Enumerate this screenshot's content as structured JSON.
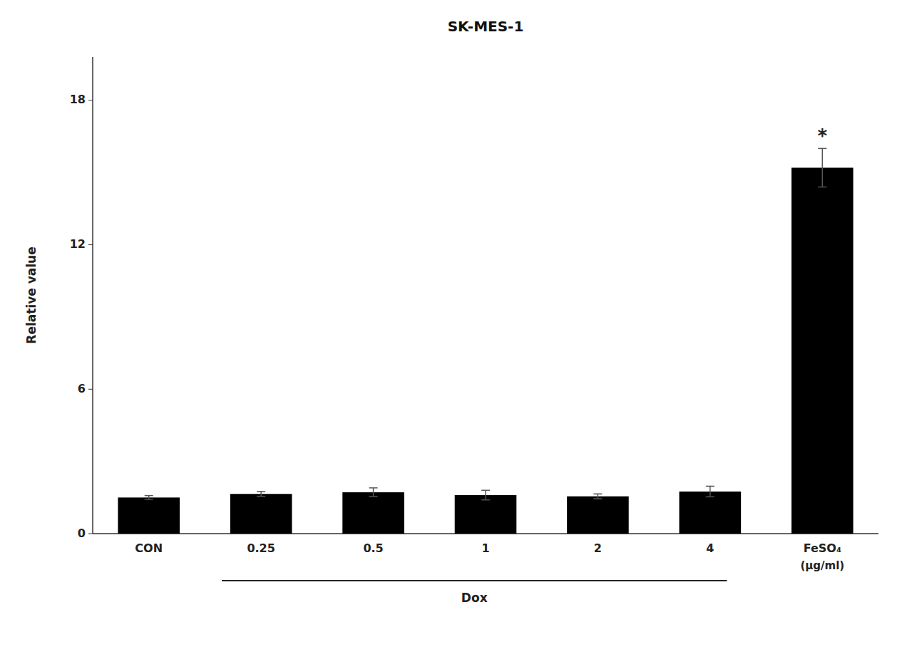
{
  "chart_data": {
    "type": "bar",
    "title": "SK-MES-1",
    "ylabel": "Relative value",
    "categories": [
      "CON",
      "0.25",
      "0.5",
      "1",
      "2",
      "4",
      "FeSO₄"
    ],
    "sublabels": [
      null,
      null,
      null,
      null,
      null,
      null,
      "(µg/ml)"
    ],
    "values": [
      1.5,
      1.65,
      1.72,
      1.6,
      1.55,
      1.75,
      15.2
    ],
    "errors": [
      0.08,
      0.1,
      0.18,
      0.2,
      0.1,
      0.22,
      0.8
    ],
    "color": "#000000",
    "ylim": [
      0,
      19.8
    ],
    "yticks": [
      0,
      6,
      12,
      18
    ],
    "grid": false,
    "annotations": [
      {
        "text": "*",
        "category": "FeSO₄"
      }
    ],
    "x_group": {
      "label": "Dox",
      "from": "0.25",
      "to": "4"
    }
  }
}
